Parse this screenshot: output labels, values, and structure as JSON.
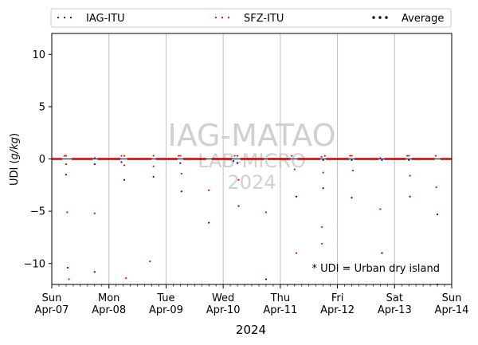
{
  "chart_data": {
    "type": "scatter",
    "xlabel": "2024",
    "ylabel": "UDI (g/kg)",
    "ylabel_plain": "UDI (",
    "ylabel_italic": "g/kg",
    "ylabel_close": ")",
    "xlim": [
      0,
      7
    ],
    "ylim": [
      -12,
      12
    ],
    "yticks": [
      -10,
      -5,
      0,
      5,
      10
    ],
    "xtick_positions": [
      0,
      1,
      2,
      3,
      4,
      5,
      6,
      7
    ],
    "xtick_days": [
      "Sun",
      "Mon",
      "Tue",
      "Wed",
      "Thu",
      "Fri",
      "Sat",
      "Sun"
    ],
    "xtick_dates": [
      "Apr-07",
      "Apr-08",
      "Apr-09",
      "Apr-10",
      "Apr-11",
      "Apr-12",
      "Apr-13",
      "Apr-14"
    ],
    "grid": "vertical at day boundaries",
    "legend_position": "top, above plot",
    "reference_line_y": 0,
    "annotation": "* UDI = Urban dry island",
    "watermark": [
      "IAG-MATAO",
      "LAB-MICRO",
      "2024"
    ],
    "series": [
      {
        "name": "IAG-ITU",
        "color": "#0000ff",
        "marker": "dot",
        "points": [
          [
            0.25,
            -1.5
          ],
          [
            0.28,
            -10.4
          ],
          [
            0.75,
            -0.5
          ],
          [
            0.75,
            -10.8
          ],
          [
            1.22,
            -0.3
          ],
          [
            1.27,
            -2.0
          ],
          [
            1.78,
            -1.7
          ],
          [
            2.25,
            -0.4
          ],
          [
            2.27,
            -3.1
          ],
          [
            2.75,
            -6.1
          ],
          [
            3.18,
            -0.2
          ],
          [
            3.27,
            -4.5
          ],
          [
            3.25,
            -0.4
          ],
          [
            3.75,
            -11.5
          ],
          [
            4.28,
            -3.6
          ],
          [
            4.75,
            -2.8
          ],
          [
            4.75,
            -0.1
          ],
          [
            5.25,
            -0.1
          ],
          [
            5.25,
            -3.7
          ],
          [
            5.78,
            -0.1
          ],
          [
            5.78,
            -9.0
          ],
          [
            6.25,
            -0.1
          ],
          [
            6.27,
            -3.6
          ],
          [
            6.75,
            -5.3
          ]
        ]
      },
      {
        "name": "SFZ-ITU",
        "color": "#ff0000",
        "marker": "dot",
        "points": [
          [
            0.22,
            0.3
          ],
          [
            0.25,
            0.3
          ],
          [
            0.25,
            -0.5
          ],
          [
            0.27,
            -5.1
          ],
          [
            0.3,
            -11.5
          ],
          [
            0.75,
            0.1
          ],
          [
            0.75,
            -5.2
          ],
          [
            1.22,
            0.3
          ],
          [
            1.27,
            0.3
          ],
          [
            1.27,
            -0.6
          ],
          [
            1.3,
            -11.4
          ],
          [
            1.72,
            -9.8
          ],
          [
            1.78,
            0.3
          ],
          [
            1.78,
            -0.7
          ],
          [
            2.22,
            0.3
          ],
          [
            2.25,
            0.3
          ],
          [
            2.27,
            -1.4
          ],
          [
            2.75,
            -3.0
          ],
          [
            3.2,
            0.3
          ],
          [
            3.25,
            0.3
          ],
          [
            3.27,
            -2.0
          ],
          [
            3.75,
            -5.1
          ],
          [
            4.2,
            0.3
          ],
          [
            4.25,
            -1.0
          ],
          [
            4.28,
            -9.0
          ],
          [
            4.72,
            0.2
          ],
          [
            4.73,
            -6.5
          ],
          [
            4.73,
            -8.1
          ],
          [
            4.75,
            -1.3
          ],
          [
            4.78,
            0.3
          ],
          [
            5.22,
            0.3
          ],
          [
            5.25,
            0.3
          ],
          [
            5.27,
            -1.1
          ],
          [
            5.75,
            0.1
          ],
          [
            5.75,
            -4.8
          ],
          [
            6.22,
            0.3
          ],
          [
            6.25,
            0.3
          ],
          [
            6.27,
            -1.6
          ],
          [
            6.72,
            0.3
          ],
          [
            6.73,
            -2.7
          ],
          [
            6.75,
            -12.0
          ]
        ]
      },
      {
        "name": "Average",
        "color": "#000000",
        "marker": "dot",
        "points": []
      }
    ],
    "near_zero_bands": {
      "color": "#cc0000",
      "note": "dense line of points at y=0 between sampling times",
      "segments": [
        [
          0.0,
          0.18
        ],
        [
          0.35,
          0.72
        ],
        [
          0.8,
          1.2
        ],
        [
          1.32,
          1.75
        ],
        [
          1.82,
          2.2
        ],
        [
          2.3,
          2.7
        ],
        [
          2.8,
          3.15
        ],
        [
          3.3,
          3.72
        ],
        [
          3.78,
          4.18
        ],
        [
          4.3,
          4.7
        ],
        [
          4.8,
          5.2
        ],
        [
          5.3,
          5.72
        ],
        [
          5.82,
          6.2
        ],
        [
          6.3,
          6.7
        ],
        [
          6.8,
          7.0
        ]
      ]
    }
  }
}
